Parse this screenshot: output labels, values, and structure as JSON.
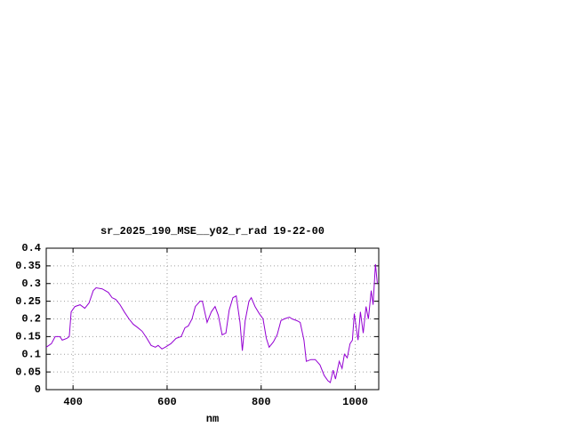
{
  "chart_data": {
    "type": "line",
    "title": "sr_2025_190_MSE__y02_r_rad 19-22-00",
    "x_label": "nm",
    "x": [
      343,
      354,
      362,
      372,
      377,
      387,
      392,
      396,
      404,
      415,
      425,
      434,
      443,
      449,
      462,
      475,
      483,
      491,
      500,
      509,
      519,
      528,
      538,
      547,
      557,
      566,
      575,
      581,
      589,
      596,
      608,
      619,
      630,
      638,
      645,
      653,
      660,
      670,
      675,
      685,
      694,
      702,
      709,
      717,
      725,
      732,
      740,
      747,
      755,
      760,
      766,
      774,
      779,
      787,
      796,
      804,
      811,
      817,
      826,
      834,
      842,
      849,
      860,
      866,
      876,
      883,
      891,
      896,
      906,
      915,
      925,
      934,
      942,
      947,
      953,
      958,
      966,
      972,
      977,
      983,
      989,
      994,
      998,
      1006,
      1011,
      1017,
      1023,
      1028,
      1034,
      1038,
      1043,
      1047
    ],
    "series": [
      {
        "color": "#9400d3",
        "values": [
          0.12,
          0.13,
          0.15,
          0.15,
          0.14,
          0.145,
          0.15,
          0.22,
          0.235,
          0.24,
          0.23,
          0.245,
          0.28,
          0.288,
          0.285,
          0.275,
          0.26,
          0.255,
          0.24,
          0.22,
          0.2,
          0.185,
          0.175,
          0.165,
          0.145,
          0.125,
          0.12,
          0.125,
          0.115,
          0.12,
          0.13,
          0.145,
          0.15,
          0.175,
          0.18,
          0.2,
          0.235,
          0.25,
          0.25,
          0.19,
          0.22,
          0.235,
          0.21,
          0.155,
          0.16,
          0.225,
          0.26,
          0.265,
          0.19,
          0.11,
          0.195,
          0.25,
          0.26,
          0.235,
          0.215,
          0.2,
          0.145,
          0.12,
          0.135,
          0.155,
          0.195,
          0.2,
          0.205,
          0.2,
          0.195,
          0.19,
          0.14,
          0.08,
          0.085,
          0.085,
          0.07,
          0.04,
          0.025,
          0.02,
          0.055,
          0.03,
          0.08,
          0.06,
          0.1,
          0.09,
          0.13,
          0.14,
          0.215,
          0.14,
          0.22,
          0.16,
          0.235,
          0.2,
          0.28,
          0.24,
          0.355,
          0.3
        ]
      }
    ],
    "xlim": [
      343,
      1050
    ],
    "xticks": [
      400,
      600,
      800,
      1000
    ],
    "ylim": [
      0,
      0.4
    ],
    "yticks": [
      0,
      0.05,
      0.1,
      0.15,
      0.2,
      0.25,
      0.3,
      0.35,
      0.4
    ],
    "grid": true
  }
}
